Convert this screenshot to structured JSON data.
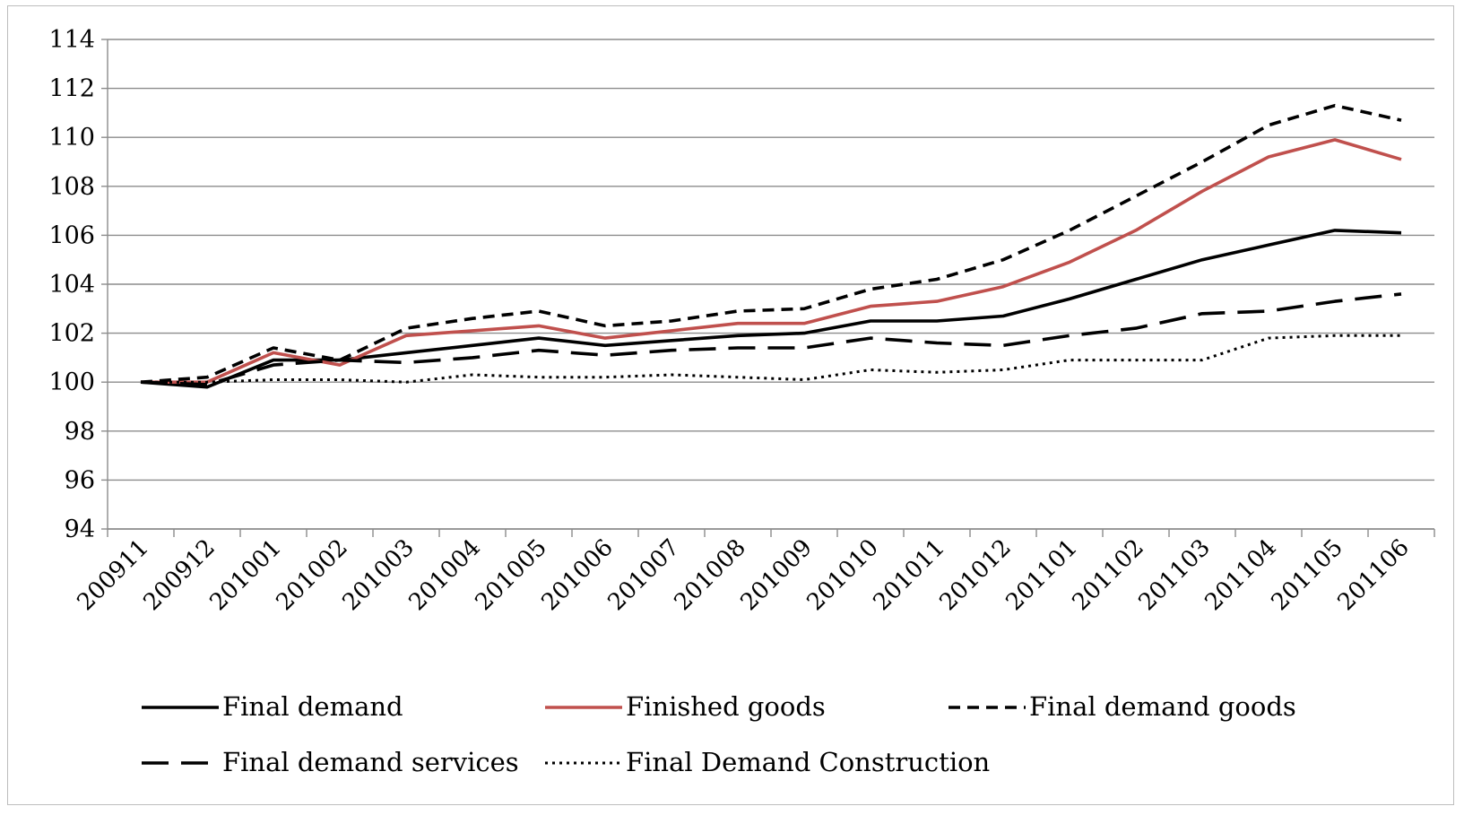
{
  "chart_data": {
    "type": "line",
    "title": "",
    "xlabel": "",
    "ylabel": "",
    "categories": [
      "200911",
      "200912",
      "201001",
      "201002",
      "201003",
      "201004",
      "201005",
      "201006",
      "201007",
      "201008",
      "201009",
      "201010",
      "201011",
      "201012",
      "201101",
      "201102",
      "201103",
      "201104",
      "201105",
      "201106"
    ],
    "ylim": [
      94,
      114
    ],
    "yticks": [
      94,
      96,
      98,
      100,
      102,
      104,
      106,
      108,
      110,
      112,
      114
    ],
    "grid": true,
    "legend_position": "bottom",
    "series": [
      {
        "name": "Final demand",
        "color": "#000000",
        "dash": "solid",
        "values": [
          100.0,
          99.8,
          100.9,
          100.9,
          101.2,
          101.5,
          101.8,
          101.5,
          101.7,
          101.9,
          102.0,
          102.5,
          102.5,
          102.7,
          103.4,
          104.2,
          105.0,
          105.6,
          106.2,
          106.1
        ]
      },
      {
        "name": "Finished goods",
        "color": "#c0504d",
        "dash": "solid",
        "values": [
          100.0,
          100.0,
          101.2,
          100.7,
          101.9,
          102.1,
          102.3,
          101.8,
          102.1,
          102.4,
          102.4,
          103.1,
          103.3,
          103.9,
          104.9,
          106.2,
          107.8,
          109.2,
          109.9,
          109.1
        ]
      },
      {
        "name": "Final demand goods",
        "color": "#000000",
        "dash": "short",
        "values": [
          100.0,
          100.2,
          101.4,
          100.9,
          102.2,
          102.6,
          102.9,
          102.3,
          102.5,
          102.9,
          103.0,
          103.8,
          104.2,
          105.0,
          106.2,
          107.6,
          109.0,
          110.5,
          111.3,
          110.7
        ]
      },
      {
        "name": "Final demand services",
        "color": "#000000",
        "dash": "long",
        "values": [
          100.0,
          99.9,
          100.7,
          100.9,
          100.8,
          101.0,
          101.3,
          101.1,
          101.3,
          101.4,
          101.4,
          101.8,
          101.6,
          101.5,
          101.9,
          102.2,
          102.8,
          102.9,
          103.3,
          103.6
        ]
      },
      {
        "name": "Final Demand Construction",
        "color": "#000000",
        "dash": "dot",
        "values": [
          100.0,
          100.0,
          100.1,
          100.1,
          100.0,
          100.3,
          100.2,
          100.2,
          100.3,
          100.2,
          100.1,
          100.5,
          100.4,
          100.5,
          100.9,
          100.9,
          100.9,
          101.8,
          101.9,
          101.9
        ]
      }
    ]
  }
}
